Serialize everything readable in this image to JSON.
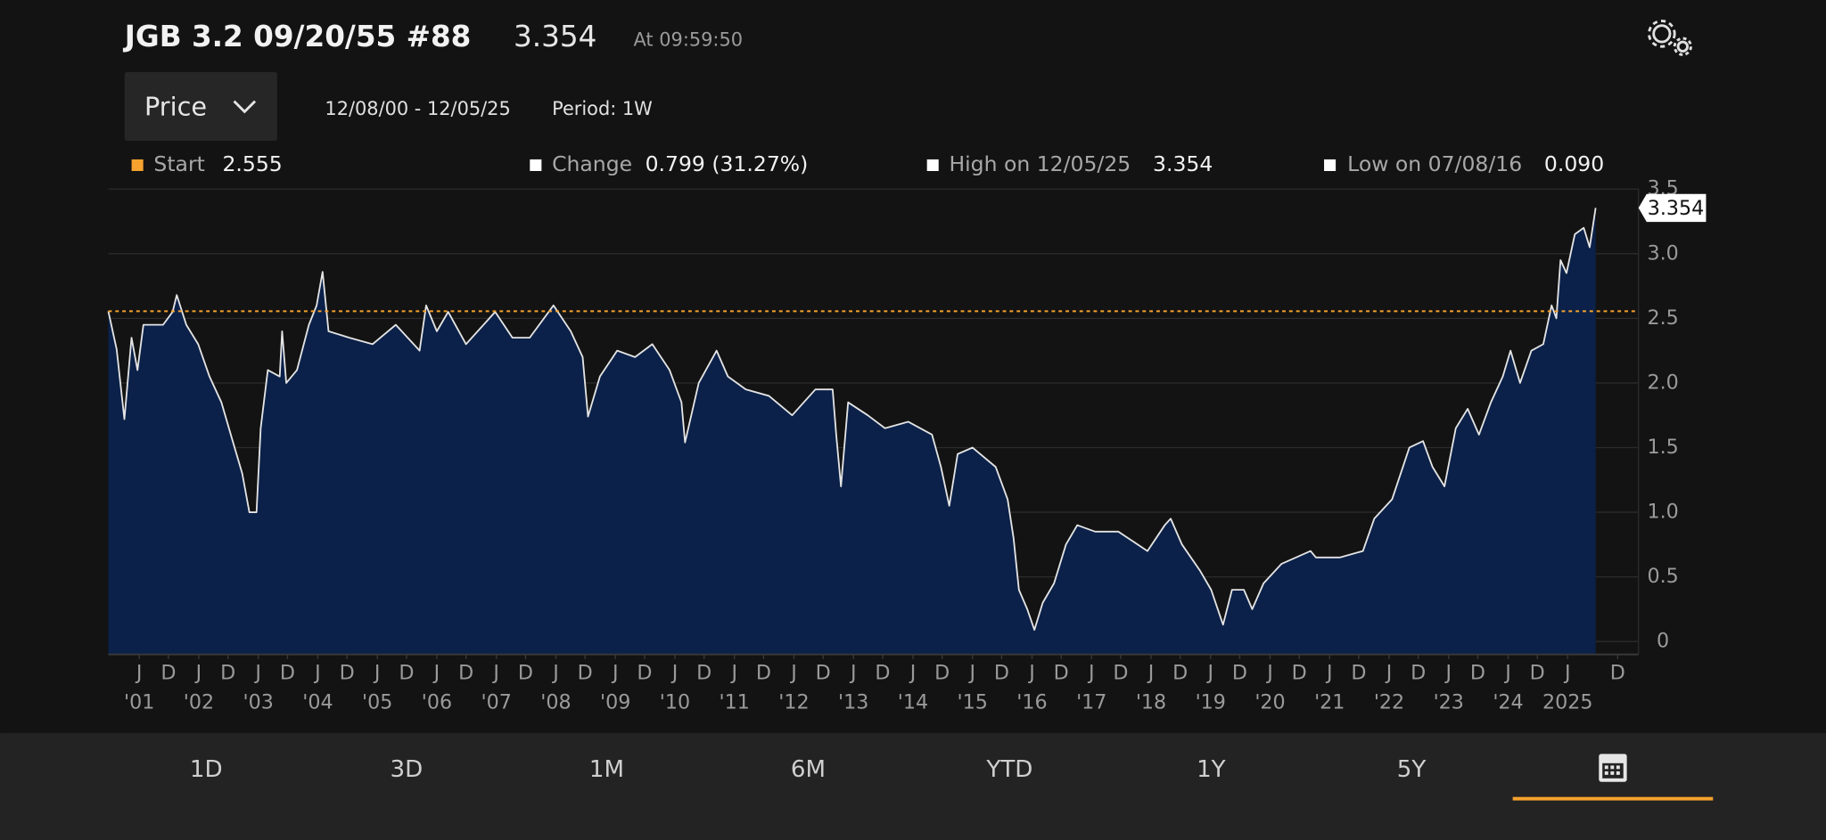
{
  "header": {
    "title": "JGB 3.2 09/20/55 #88",
    "price": "3.354",
    "time": "At 09:59:50",
    "dropdown": "Price",
    "range": "12/08/00 - 12/05/25",
    "period": "Period: 1W"
  },
  "legend": {
    "start_label": "Start",
    "change_label": "Change",
    "change_value": "0.799 (31.27%)",
    "high_label": "High on 12/05/25",
    "high_value": "3.354",
    "low_label": "Low on 07/08/16",
    "low_value": "0.090"
  },
  "buttons": [
    "1D",
    "3D",
    "1M",
    "6M",
    "YTD",
    "1Y",
    "5Y"
  ],
  "chart_data": {
    "type": "area",
    "x": [
      2000.94,
      2001.08,
      2001.21,
      2001.33,
      2001.43,
      2001.53,
      2001.86,
      2002.02,
      2002.09,
      2002.25,
      2002.45,
      2002.64,
      2002.84,
      2003.03,
      2003.19,
      2003.31,
      2003.43,
      2003.5,
      2003.62,
      2003.82,
      2003.86,
      2003.93,
      2004.11,
      2004.31,
      2004.44,
      2004.54,
      2004.64,
      2004.99,
      2005.38,
      2005.77,
      2006.17,
      2006.28,
      2006.46,
      2006.65,
      2006.95,
      2007.44,
      2007.73,
      2008.02,
      2008.42,
      2008.71,
      2008.91,
      2009,
      2009.2,
      2009.49,
      2009.79,
      2010.08,
      2010.37,
      2010.57,
      2010.63,
      2010.86,
      2011.16,
      2011.35,
      2011.65,
      2012.04,
      2012.43,
      2012.82,
      2013.11,
      2013.17,
      2013.25,
      2013.37,
      2013.7,
      2013.99,
      2014.38,
      2014.78,
      2014.93,
      2015.07,
      2015.21,
      2015.46,
      2015.85,
      2016.05,
      2016.15,
      2016.24,
      2016.38,
      2016.5,
      2016.64,
      2016.83,
      2017.03,
      2017.22,
      2017.52,
      2017.91,
      2018.4,
      2018.69,
      2018.79,
      2018.98,
      2019.28,
      2019.47,
      2019.67,
      2019.82,
      2020.02,
      2020.16,
      2020.35,
      2020.65,
      2021.14,
      2021.23,
      2021.63,
      2022.02,
      2022.21,
      2022.51,
      2022.8,
      2023.03,
      2023.19,
      2023.39,
      2023.58,
      2023.78,
      2023.97,
      2024.17,
      2024.37,
      2024.5,
      2024.66,
      2024.85,
      2025.05,
      2025.19,
      2025.27,
      2025.34,
      2025.44,
      2025.58,
      2025.73,
      2025.83,
      2025.93
    ],
    "series": [
      {
        "color": "#e4e4e4",
        "fill": "#0b2149",
        "values": [
          2.555,
          2.26,
          1.72,
          2.35,
          2.1,
          2.45,
          2.45,
          2.55,
          2.68,
          2.45,
          2.3,
          2.05,
          1.85,
          1.55,
          1.3,
          1.0,
          1.0,
          1.65,
          2.1,
          2.05,
          2.4,
          2.0,
          2.1,
          2.45,
          2.6,
          2.86,
          2.4,
          2.35,
          2.3,
          2.45,
          2.25,
          2.6,
          2.4,
          2.55,
          2.3,
          2.55,
          2.35,
          2.35,
          2.6,
          2.4,
          2.2,
          1.74,
          2.05,
          2.25,
          2.2,
          2.3,
          2.1,
          1.85,
          1.54,
          2.0,
          2.25,
          2.05,
          1.95,
          1.9,
          1.75,
          1.95,
          1.95,
          1.6,
          1.2,
          1.85,
          1.75,
          1.65,
          1.7,
          1.6,
          1.35,
          1.05,
          1.45,
          1.5,
          1.35,
          1.1,
          0.8,
          0.4,
          0.25,
          0.09,
          0.3,
          0.45,
          0.75,
          0.9,
          0.85,
          0.85,
          0.7,
          0.9,
          0.95,
          0.75,
          0.55,
          0.4,
          0.13,
          0.4,
          0.4,
          0.25,
          0.45,
          0.6,
          0.7,
          0.65,
          0.65,
          0.7,
          0.95,
          1.1,
          1.5,
          1.55,
          1.35,
          1.2,
          1.65,
          1.8,
          1.6,
          1.85,
          2.05,
          2.25,
          2.0,
          2.25,
          2.3,
          2.6,
          2.5,
          2.95,
          2.85,
          3.15,
          3.2,
          3.05,
          3.354
        ]
      }
    ],
    "reference_line": {
      "value": 2.555,
      "color": "#f5a22e"
    },
    "xlim": [
      2000.94,
      2026.65
    ],
    "ylim": [
      -0.1,
      3.5
    ],
    "yticks": [
      0,
      0.5,
      {
        "value": 1,
        "label": "1.0"
      },
      1.5,
      {
        "value": 2,
        "label": "2.0"
      },
      2.5,
      {
        "value": 3,
        "label": "3.0"
      },
      3.5
    ],
    "xticks": [
      {
        "value": 2001.46,
        "label": "J"
      },
      {
        "value": 2001.95,
        "label": "D"
      },
      {
        "value": 2002.46,
        "label": "J"
      },
      {
        "value": 2002.95,
        "label": "D"
      },
      {
        "value": 2003.46,
        "label": "J"
      },
      {
        "value": 2003.95,
        "label": "D"
      },
      {
        "value": 2004.46,
        "label": "J"
      },
      {
        "value": 2004.95,
        "label": "D"
      },
      {
        "value": 2005.46,
        "label": "J"
      },
      {
        "value": 2005.95,
        "label": "D"
      },
      {
        "value": 2006.46,
        "label": "J"
      },
      {
        "value": 2006.95,
        "label": "D"
      },
      {
        "value": 2007.46,
        "label": "J"
      },
      {
        "value": 2007.95,
        "label": "D"
      },
      {
        "value": 2008.46,
        "label": "J"
      },
      {
        "value": 2008.95,
        "label": "D"
      },
      {
        "value": 2009.46,
        "label": "J"
      },
      {
        "value": 2009.95,
        "label": "D"
      },
      {
        "value": 2010.46,
        "label": "J"
      },
      {
        "value": 2010.95,
        "label": "D"
      },
      {
        "value": 2011.46,
        "label": "J"
      },
      {
        "value": 2011.95,
        "label": "D"
      },
      {
        "value": 2012.46,
        "label": "J"
      },
      {
        "value": 2012.95,
        "label": "D"
      },
      {
        "value": 2013.46,
        "label": "J"
      },
      {
        "value": 2013.95,
        "label": "D"
      },
      {
        "value": 2014.46,
        "label": "J"
      },
      {
        "value": 2014.95,
        "label": "D"
      },
      {
        "value": 2015.46,
        "label": "J"
      },
      {
        "value": 2015.95,
        "label": "D"
      },
      {
        "value": 2016.46,
        "label": "J"
      },
      {
        "value": 2016.95,
        "label": "D"
      },
      {
        "value": 2017.46,
        "label": "J"
      },
      {
        "value": 2017.95,
        "label": "D"
      },
      {
        "value": 2018.46,
        "label": "J"
      },
      {
        "value": 2018.95,
        "label": "D"
      },
      {
        "value": 2019.46,
        "label": "J"
      },
      {
        "value": 2019.95,
        "label": "D"
      },
      {
        "value": 2020.46,
        "label": "J"
      },
      {
        "value": 2020.95,
        "label": "D"
      },
      {
        "value": 2021.46,
        "label": "J"
      },
      {
        "value": 2021.95,
        "label": "D"
      },
      {
        "value": 2022.46,
        "label": "J"
      },
      {
        "value": 2022.95,
        "label": "D"
      },
      {
        "value": 2023.46,
        "label": "J"
      },
      {
        "value": 2023.95,
        "label": "D"
      },
      {
        "value": 2024.46,
        "label": "J"
      },
      {
        "value": 2024.95,
        "label": "D"
      },
      {
        "value": 2025.46,
        "label": "J"
      },
      {
        "value": 2026.3,
        "label": "D"
      }
    ],
    "x_year_labels": [
      {
        "value": 2001.46,
        "label": "'01"
      },
      {
        "value": 2002.46,
        "label": "'02"
      },
      {
        "value": 2003.46,
        "label": "'03"
      },
      {
        "value": 2004.46,
        "label": "'04"
      },
      {
        "value": 2005.46,
        "label": "'05"
      },
      {
        "value": 2006.46,
        "label": "'06"
      },
      {
        "value": 2007.46,
        "label": "'07"
      },
      {
        "value": 2008.46,
        "label": "'08"
      },
      {
        "value": 2009.46,
        "label": "'09"
      },
      {
        "value": 2010.46,
        "label": "'10"
      },
      {
        "value": 2011.46,
        "label": "'11"
      },
      {
        "value": 2012.46,
        "label": "'12"
      },
      {
        "value": 2013.46,
        "label": "'13"
      },
      {
        "value": 2014.46,
        "label": "'14"
      },
      {
        "value": 2015.46,
        "label": "'15"
      },
      {
        "value": 2016.46,
        "label": "'16"
      },
      {
        "value": 2017.46,
        "label": "'17"
      },
      {
        "value": 2018.46,
        "label": "'18"
      },
      {
        "value": 2019.46,
        "label": "'19"
      },
      {
        "value": 2020.46,
        "label": "'20"
      },
      {
        "value": 2021.46,
        "label": "'21"
      },
      {
        "value": 2022.46,
        "label": "'22"
      },
      {
        "value": 2023.46,
        "label": "'23"
      },
      {
        "value": 2024.46,
        "label": "'24"
      },
      {
        "value": 2025.46,
        "label": "2025"
      }
    ],
    "grid": true
  }
}
